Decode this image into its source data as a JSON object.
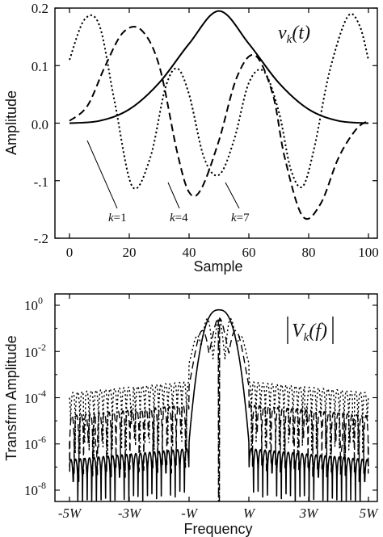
{
  "chart_data": [
    {
      "type": "line",
      "title": "v_k(t)",
      "title_parts": {
        "sym": "v",
        "sub": "k",
        "arg": "(t)"
      },
      "xlabel": "Sample",
      "ylabel": "Amplitude",
      "xlim": [
        0,
        100
      ],
      "ylim": [
        -0.2,
        0.2
      ],
      "xticks": [
        "0",
        "20",
        "40",
        "60",
        "80",
        "100"
      ],
      "yticks": [
        "0.2",
        "0.1",
        "0.0",
        "-.1",
        "-.2"
      ],
      "grid": false,
      "series": [
        {
          "name": "k=1",
          "label_parts": {
            "k": "k",
            "eq": "=1"
          },
          "style": "solid",
          "x": [
            0,
            10,
            20,
            30,
            40,
            50,
            60,
            70,
            80,
            90,
            100
          ],
          "y": [
            0.0,
            0.004,
            0.024,
            0.07,
            0.138,
            0.195,
            0.138,
            0.07,
            0.024,
            0.004,
            0.0
          ]
        },
        {
          "name": "k=4",
          "label_parts": {
            "k": "k",
            "eq": "=4"
          },
          "style": "dashed",
          "x": [
            0,
            6,
            12,
            18,
            24,
            30,
            36,
            40,
            44,
            50,
            56,
            62,
            68,
            72,
            78,
            84,
            90,
            96,
            100
          ],
          "y": [
            0.004,
            0.03,
            0.1,
            0.158,
            0.162,
            0.1,
            -0.05,
            -0.12,
            -0.115,
            -0.03,
            0.08,
            0.118,
            0.05,
            -0.06,
            -0.162,
            -0.14,
            -0.06,
            -0.01,
            0.004
          ]
        },
        {
          "name": "k=7",
          "label_parts": {
            "k": "k",
            "eq": "=7"
          },
          "style": "dotted",
          "x": [
            0,
            5,
            10,
            15,
            21,
            27,
            32,
            36,
            40,
            45,
            50,
            55,
            60,
            65,
            70,
            74,
            78,
            82,
            87,
            93,
            97,
            100
          ],
          "y": [
            0.11,
            0.18,
            0.17,
            0.04,
            -0.11,
            -0.06,
            0.06,
            0.095,
            0.05,
            -0.06,
            -0.09,
            -0.03,
            0.07,
            0.09,
            0.02,
            -0.08,
            -0.11,
            -0.04,
            0.09,
            0.185,
            0.17,
            0.11
          ]
        }
      ],
      "annotations": [
        "k=1",
        "k=4",
        "k=7"
      ]
    },
    {
      "type": "line",
      "title": "|V_k(f)|",
      "title_parts": {
        "sym": "V",
        "sub": "k",
        "arg": "(f)"
      },
      "xlabel": "Frequency",
      "ylabel": "Transfrm Amplitude",
      "yscale": "log",
      "xlim": [
        -5,
        5
      ],
      "xlim_units": "W",
      "ylim_exp": [
        -9,
        0
      ],
      "xticks": [
        "-5W",
        "-3W",
        "-W",
        "W",
        "3W",
        "5W"
      ],
      "yticks": [
        {
          "base": "10",
          "exp": "0"
        },
        {
          "base": "10",
          "exp": "-2"
        },
        {
          "base": "10",
          "exp": "-4"
        },
        {
          "base": "10",
          "exp": "-6"
        },
        {
          "base": "10",
          "exp": "-8"
        }
      ],
      "grid": false,
      "series": [
        {
          "name": "k=1",
          "style": "solid",
          "mainlobe_peak_exp": -0.2,
          "sidelobe_exp": -6.2,
          "mainlobe_halfwidth": 1.0
        },
        {
          "name": "k=4",
          "style": "dashed",
          "mainlobe_peak_exp": -0.3,
          "sidelobe_exp": -4.3,
          "mainlobe_halfwidth": 1.0
        },
        {
          "name": "k=7",
          "style": "dotted",
          "mainlobe_peak_exp": -0.3,
          "sidelobe_exp": -3.3,
          "mainlobe_halfwidth": 1.0
        }
      ]
    }
  ]
}
